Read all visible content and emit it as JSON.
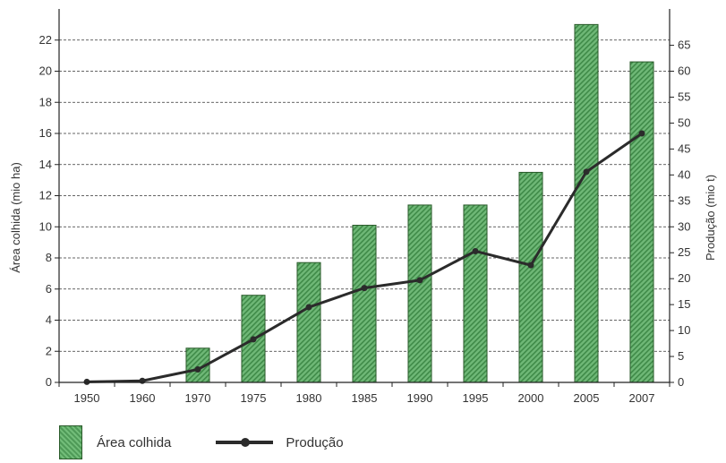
{
  "chart_data": {
    "type": "bar",
    "categories": [
      "1950",
      "1960",
      "1970",
      "1975",
      "1980",
      "1985",
      "1990",
      "1995",
      "2000",
      "2005",
      "2007"
    ],
    "series": [
      {
        "name": "Área colhida",
        "type": "bar",
        "axis": "left",
        "values": [
          0,
          0,
          2.2,
          5.6,
          7.7,
          10.1,
          11.4,
          11.4,
          13.5,
          23.0,
          20.6
        ]
      },
      {
        "name": "Produção",
        "type": "line",
        "axis": "right",
        "values": [
          0.1,
          0.3,
          2.5,
          8.3,
          14.5,
          18.2,
          19.7,
          25.3,
          22.6,
          40.6,
          48.0
        ]
      }
    ],
    "ylabel": "Área colhida (mio ha)",
    "y2label": "Produção (mio t)",
    "ylim": [
      0,
      24
    ],
    "y2lim": [
      0,
      72
    ],
    "yticks": [
      0,
      2,
      4,
      6,
      8,
      10,
      12,
      14,
      16,
      18,
      20,
      22
    ],
    "y2ticks": [
      0,
      5,
      10,
      15,
      20,
      25,
      30,
      35,
      40,
      45,
      50,
      55,
      60,
      65
    ],
    "y2tick_labels": [
      "0",
      "5",
      "10",
      "15",
      "20",
      "25",
      "30",
      "35",
      "40",
      "45",
      "50",
      "55",
      "60",
      "65"
    ],
    "grid": true,
    "colors": {
      "bar": "#5aa563",
      "bar_stripe": "#2f7a3a",
      "line": "#2b2b2b"
    }
  },
  "legend": {
    "area_label": "Área colhida",
    "production_label": "Produção"
  }
}
